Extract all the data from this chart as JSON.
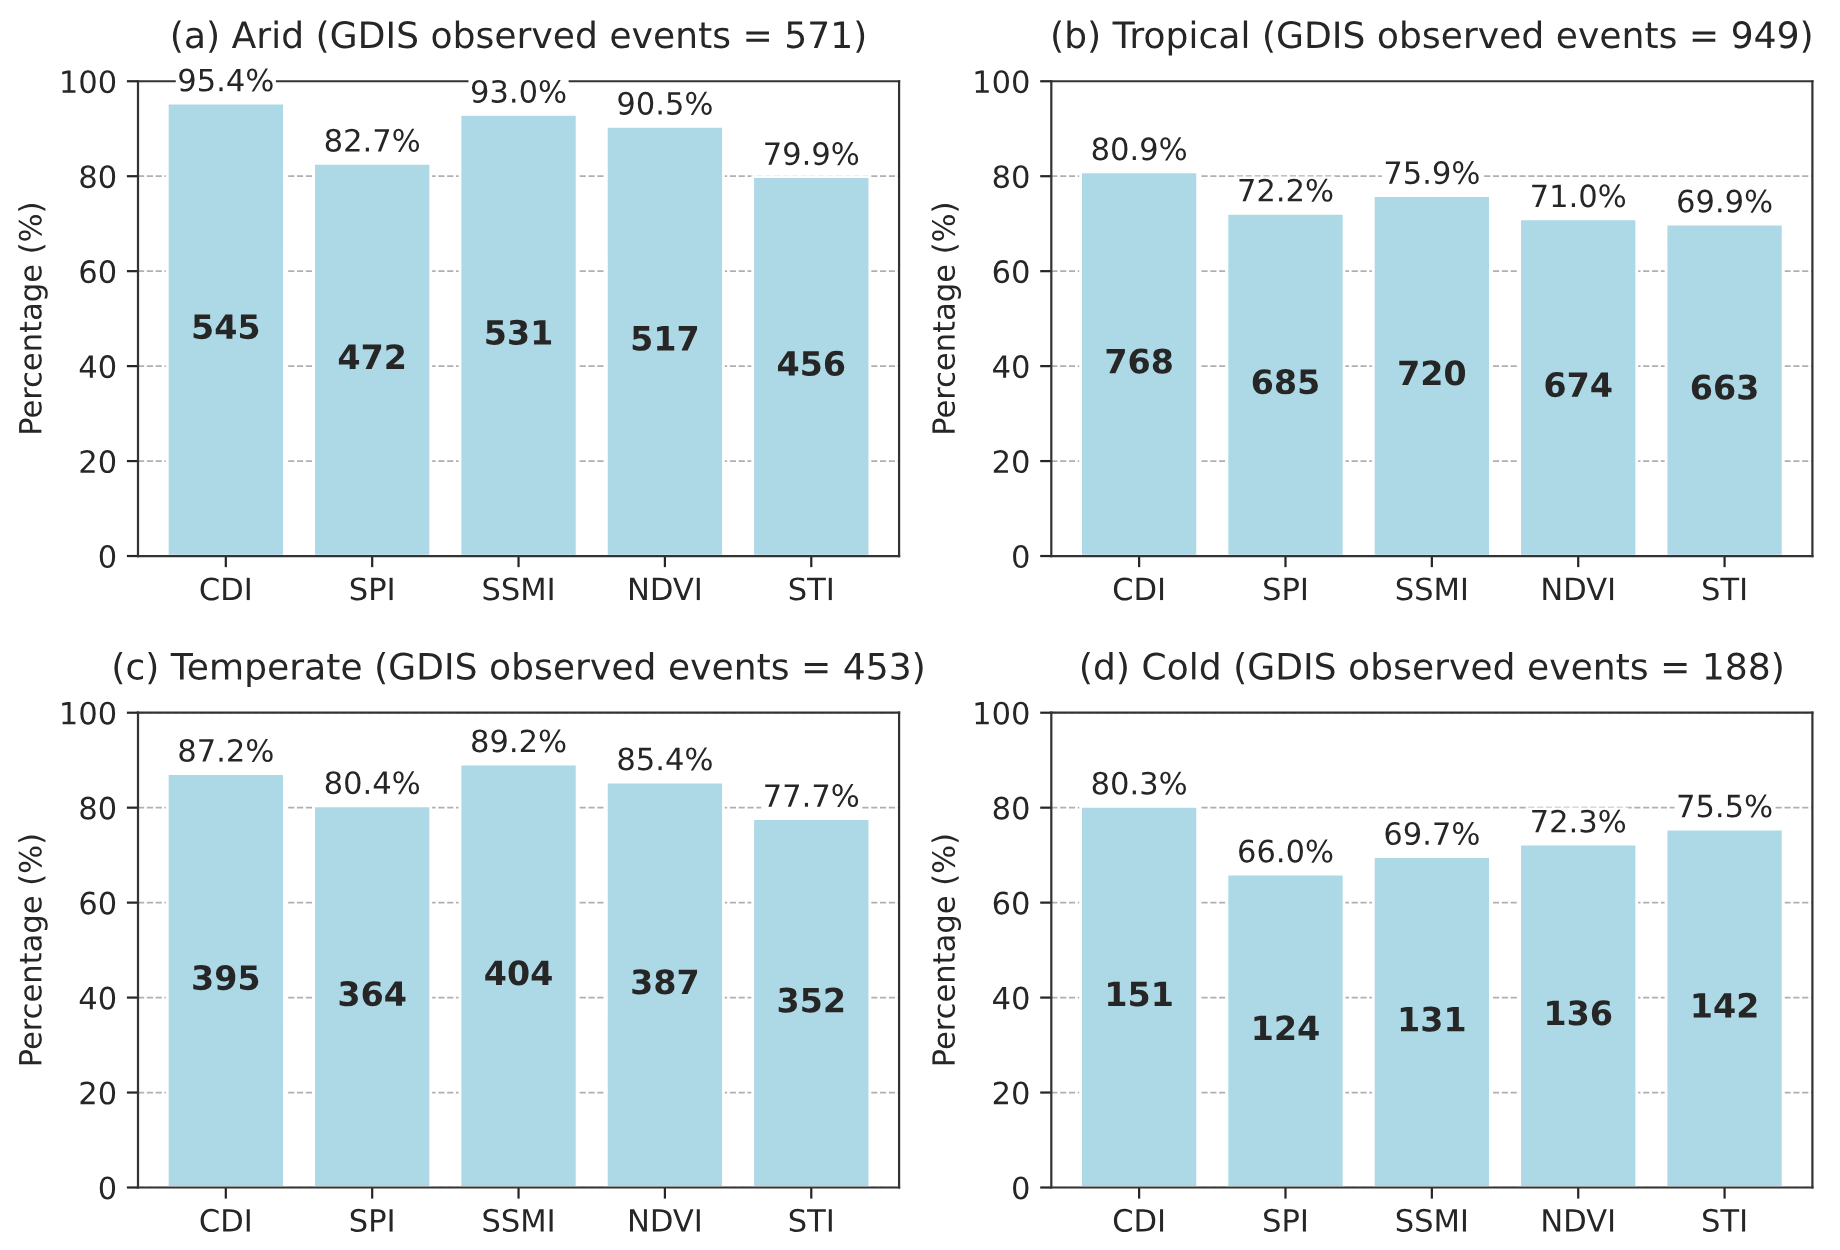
{
  "chart_data": [
    {
      "type": "bar",
      "title": "(a) Arid (GDIS observed events = 571)",
      "ylabel": "Percentage (%)",
      "categories": [
        "CDI",
        "SPI",
        "SSMI",
        "NDVI",
        "STI"
      ],
      "values": [
        95.4,
        82.7,
        93.0,
        90.5,
        79.9
      ],
      "color": "#add8e6",
      "value_labels": [
        "95.4%",
        "82.7%",
        "93.0%",
        "90.5%",
        "79.9%"
      ],
      "annotations": [
        "545",
        "472",
        "531",
        "517",
        "456"
      ],
      "ylim": [
        0,
        100
      ],
      "yticks": [
        0,
        20,
        40,
        60,
        80,
        100
      ],
      "grid": "y"
    },
    {
      "type": "bar",
      "title": "(b) Tropical (GDIS observed events = 949)",
      "ylabel": "Percentage (%)",
      "categories": [
        "CDI",
        "SPI",
        "SSMI",
        "NDVI",
        "STI"
      ],
      "values": [
        80.9,
        72.2,
        75.9,
        71.0,
        69.9
      ],
      "color": "#add8e6",
      "value_labels": [
        "80.9%",
        "72.2%",
        "75.9%",
        "71.0%",
        "69.9%"
      ],
      "annotations": [
        "768",
        "685",
        "720",
        "674",
        "663"
      ],
      "ylim": [
        0,
        100
      ],
      "yticks": [
        0,
        20,
        40,
        60,
        80,
        100
      ],
      "grid": "y"
    },
    {
      "type": "bar",
      "title": "(c) Temperate (GDIS observed events = 453)",
      "ylabel": "Percentage (%)",
      "categories": [
        "CDI",
        "SPI",
        "SSMI",
        "NDVI",
        "STI"
      ],
      "values": [
        87.2,
        80.4,
        89.2,
        85.4,
        77.7
      ],
      "color": "#add8e6",
      "value_labels": [
        "87.2%",
        "80.4%",
        "89.2%",
        "85.4%",
        "77.7%"
      ],
      "annotations": [
        "395",
        "364",
        "404",
        "387",
        "352"
      ],
      "ylim": [
        0,
        100
      ],
      "yticks": [
        0,
        20,
        40,
        60,
        80,
        100
      ],
      "grid": "y"
    },
    {
      "type": "bar",
      "title": "(d) Cold (GDIS observed events = 188)",
      "ylabel": "Percentage (%)",
      "categories": [
        "CDI",
        "SPI",
        "SSMI",
        "NDVI",
        "STI"
      ],
      "values": [
        80.3,
        66.0,
        69.7,
        72.3,
        75.5
      ],
      "color": "#add8e6",
      "value_labels": [
        "80.3%",
        "66.0%",
        "69.7%",
        "72.3%",
        "75.5%"
      ],
      "annotations": [
        "151",
        "124",
        "131",
        "136",
        "142"
      ],
      "ylim": [
        0,
        100
      ],
      "yticks": [
        0,
        20,
        40,
        60,
        80,
        100
      ],
      "grid": "y"
    }
  ]
}
